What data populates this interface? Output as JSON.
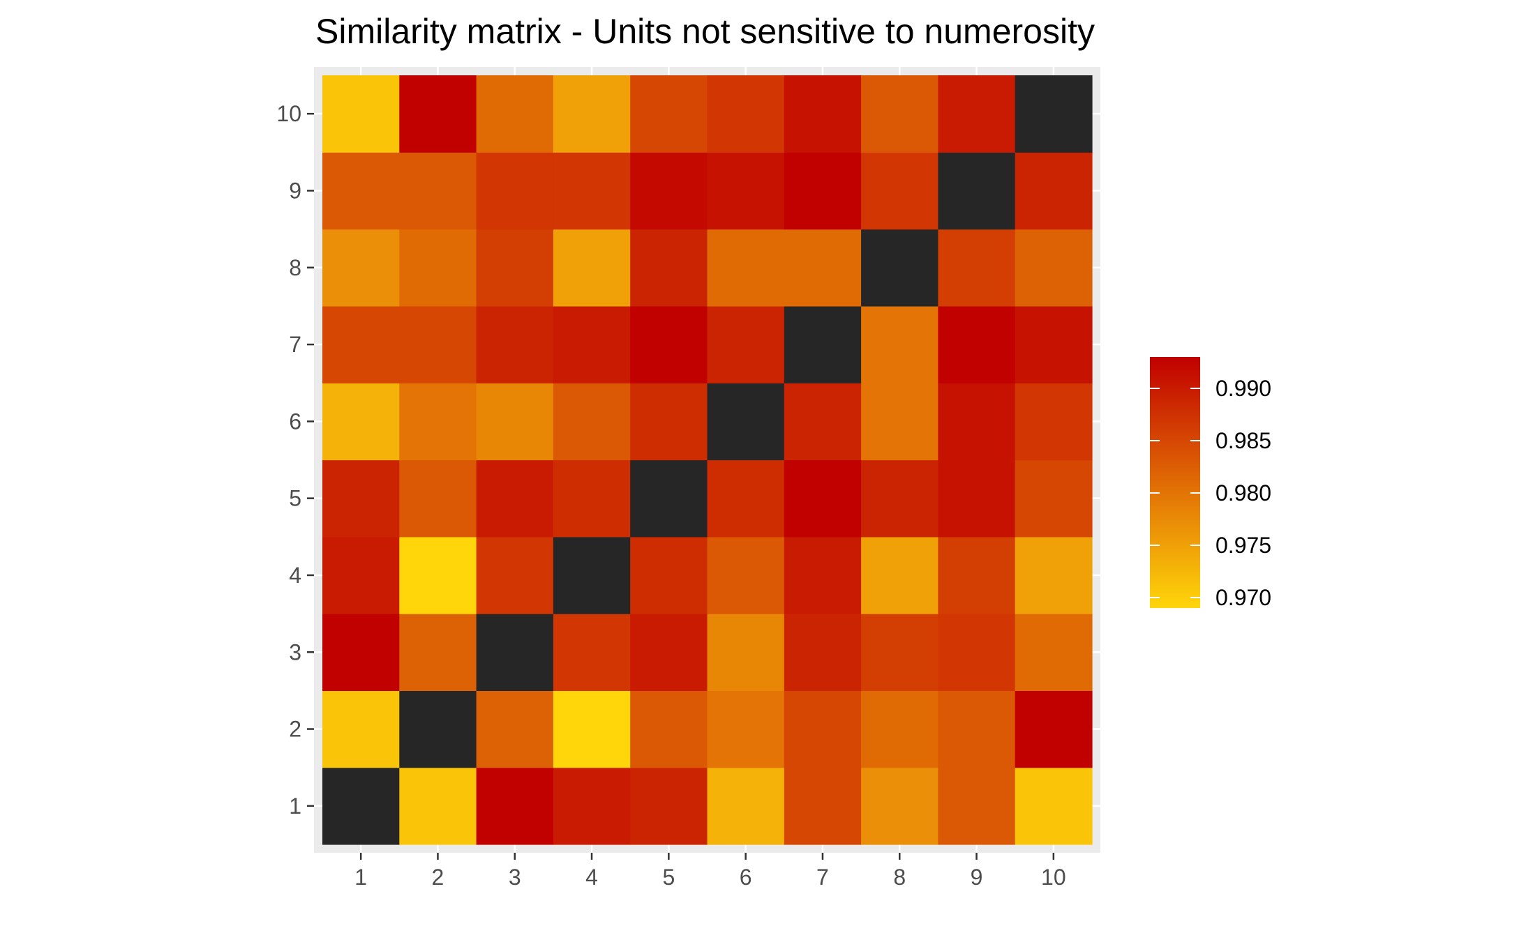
{
  "chart_data": {
    "type": "heatmap",
    "title": "Similarity matrix - Units not sensitive to numerosity",
    "xlabel": "",
    "ylabel": "",
    "x_categories": [
      "1",
      "2",
      "3",
      "4",
      "5",
      "6",
      "7",
      "8",
      "9",
      "10"
    ],
    "y_categories": [
      "1",
      "2",
      "3",
      "4",
      "5",
      "6",
      "7",
      "8",
      "9",
      "10"
    ],
    "values": [
      [
        null,
        0.971,
        0.993,
        0.99,
        0.989,
        0.973,
        0.985,
        0.977,
        0.983,
        0.971
      ],
      [
        0.971,
        null,
        0.982,
        0.969,
        0.983,
        0.98,
        0.985,
        0.981,
        0.983,
        0.993
      ],
      [
        0.993,
        0.982,
        null,
        0.987,
        0.99,
        0.978,
        0.989,
        0.986,
        0.987,
        0.981
      ],
      [
        0.99,
        0.969,
        0.987,
        null,
        0.988,
        0.983,
        0.99,
        0.975,
        0.986,
        0.975
      ],
      [
        0.989,
        0.983,
        0.99,
        0.988,
        null,
        0.988,
        0.993,
        0.989,
        0.991,
        0.985
      ],
      [
        0.973,
        0.98,
        0.978,
        0.983,
        0.988,
        null,
        0.989,
        0.98,
        0.991,
        0.987
      ],
      [
        0.985,
        0.985,
        0.989,
        0.99,
        0.993,
        0.989,
        null,
        0.98,
        0.993,
        0.991
      ],
      [
        0.977,
        0.981,
        0.986,
        0.975,
        0.989,
        0.981,
        0.981,
        null,
        0.986,
        0.982
      ],
      [
        0.983,
        0.983,
        0.987,
        0.987,
        0.992,
        0.991,
        0.993,
        0.987,
        null,
        0.989
      ],
      [
        0.971,
        0.993,
        0.981,
        0.975,
        0.985,
        0.987,
        0.991,
        0.983,
        0.99,
        null
      ]
    ],
    "color_scale": {
      "min": 0.969,
      "max": 0.993,
      "low_color": "#FFD60A",
      "high_color": "#C10000",
      "na_color": "#262626"
    },
    "legend": {
      "position": "right",
      "ticks": [
        0.97,
        0.975,
        0.98,
        0.985,
        0.99
      ],
      "tick_labels": [
        "0.970",
        "0.975",
        "0.980",
        "0.985",
        "0.990"
      ]
    },
    "panel_background": "#EBEBEB",
    "grid": true
  }
}
